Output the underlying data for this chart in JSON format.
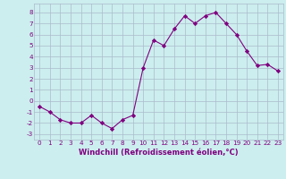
{
  "x": [
    0,
    1,
    2,
    3,
    4,
    5,
    6,
    7,
    8,
    9,
    10,
    11,
    12,
    13,
    14,
    15,
    16,
    17,
    18,
    19,
    20,
    21,
    22,
    23
  ],
  "y": [
    -0.5,
    -1.0,
    -1.7,
    -2.0,
    -2.0,
    -1.3,
    -2.0,
    -2.5,
    -1.7,
    -1.3,
    3.0,
    5.5,
    5.0,
    6.5,
    7.7,
    7.0,
    7.7,
    8.0,
    7.0,
    6.0,
    4.5,
    3.2,
    3.3,
    2.7
  ],
  "line_color": "#800080",
  "marker_color": "#800080",
  "bg_color": "#cceeee",
  "grid_color": "#aabbcc",
  "xlabel": "Windchill (Refroidissement éolien,°C)",
  "xlabel_color": "#800080",
  "ylim": [
    -3.5,
    8.8
  ],
  "xlim": [
    -0.5,
    23.5
  ],
  "yticks": [
    -3,
    -2,
    -1,
    0,
    1,
    2,
    3,
    4,
    5,
    6,
    7,
    8
  ],
  "xticks": [
    0,
    1,
    2,
    3,
    4,
    5,
    6,
    7,
    8,
    9,
    10,
    11,
    12,
    13,
    14,
    15,
    16,
    17,
    18,
    19,
    20,
    21,
    22,
    23
  ],
  "tick_label_color": "#800080",
  "tick_label_fontsize": 5.2,
  "xlabel_fontsize": 6.0,
  "linewidth": 0.8,
  "markersize": 2.2
}
